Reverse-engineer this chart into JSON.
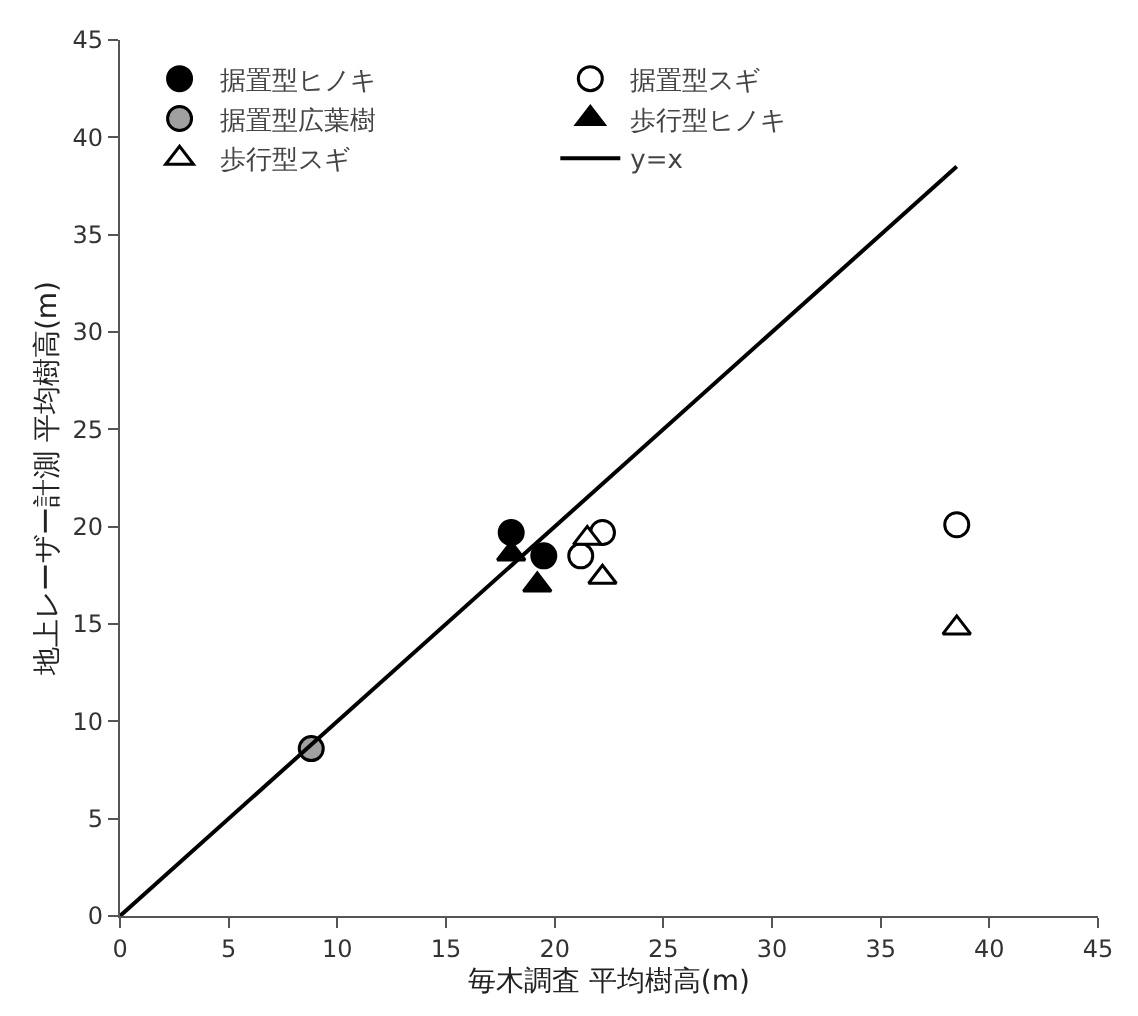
{
  "chart_data": {
    "type": "scatter",
    "xlabel": "毎木調査 平均樹高(m)",
    "ylabel": "地上レーザー計測 平均樹高(m)",
    "xlim": [
      0,
      45
    ],
    "ylim": [
      0,
      45
    ],
    "xticks": [
      0,
      5,
      10,
      15,
      20,
      25,
      30,
      35,
      40,
      45
    ],
    "yticks": [
      0,
      5,
      10,
      15,
      20,
      25,
      30,
      35,
      40,
      45
    ],
    "legend": "top left",
    "series": [
      {
        "name": "据置型ヒノキ",
        "color": "#000000",
        "marker": "circle",
        "x": [
          18.0,
          19.0,
          19.5
        ],
        "values": [
          19.7,
          null,
          18.5
        ]
      },
      {
        "name": "据置型スギ",
        "color": "#ffffff",
        "marker": "circle",
        "x": [
          22.2,
          21.2,
          38.5
        ],
        "values": [
          19.7,
          18.5,
          20.1
        ]
      },
      {
        "name": "据置型広葉樹",
        "color": "#a0a0a0",
        "marker": "circle",
        "x": [
          8.8
        ],
        "values": [
          8.6
        ]
      },
      {
        "name": "歩行型ヒノキ",
        "color": "#000000",
        "marker": "triangle",
        "x": [
          18.0,
          19.2
        ],
        "values": [
          18.6,
          17.0
        ]
      },
      {
        "name": "歩行型スギ",
        "color": "#ffffff",
        "marker": "triangle",
        "x": [
          21.5,
          22.2,
          38.5
        ],
        "values": [
          19.4,
          17.4,
          14.8
        ]
      },
      {
        "name": "y=x",
        "type": "line",
        "color": "#000000",
        "marker": "none",
        "line_style": "solid",
        "x": [
          0,
          38.5
        ],
        "values": [
          0,
          38.5
        ]
      }
    ]
  }
}
